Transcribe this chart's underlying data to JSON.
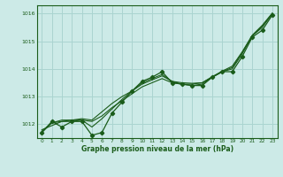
{
  "title": "",
  "xlabel": "Graphe pression niveau de la mer (hPa)",
  "bg_color": "#cceae7",
  "grid_color": "#aad4d0",
  "line_color": "#1a5c1a",
  "spine_color": "#1a5c1a",
  "ylim": [
    1011.5,
    1016.3
  ],
  "yticks": [
    1012,
    1013,
    1014,
    1015,
    1016
  ],
  "xlim": [
    -0.5,
    23.5
  ],
  "series_main": [
    1011.7,
    1012.1,
    1011.9,
    1012.1,
    1012.1,
    1011.6,
    1011.7,
    1012.4,
    1012.8,
    1013.2,
    1013.55,
    1013.7,
    1013.9,
    1013.5,
    1013.45,
    1013.4,
    1013.4,
    1013.7,
    1013.9,
    1013.9,
    1014.45,
    1015.15,
    1015.4,
    1015.95
  ],
  "series_smooth": [
    1011.7,
    1012.05,
    1012.1,
    1012.15,
    1012.15,
    1011.9,
    1012.2,
    1012.55,
    1012.9,
    1013.2,
    1013.5,
    1013.65,
    1013.8,
    1013.55,
    1013.45,
    1013.4,
    1013.45,
    1013.7,
    1013.9,
    1014.0,
    1014.55,
    1015.2,
    1015.5,
    1016.0
  ],
  "series_trend1": [
    1011.8,
    1011.95,
    1012.1,
    1012.1,
    1012.15,
    1012.1,
    1012.3,
    1012.6,
    1012.85,
    1013.1,
    1013.35,
    1013.5,
    1013.65,
    1013.5,
    1013.45,
    1013.45,
    1013.5,
    1013.7,
    1013.9,
    1014.05,
    1014.6,
    1015.2,
    1015.55,
    1016.0
  ],
  "series_trend2": [
    1011.75,
    1012.05,
    1012.15,
    1012.15,
    1012.2,
    1012.15,
    1012.45,
    1012.75,
    1013.0,
    1013.2,
    1013.45,
    1013.6,
    1013.75,
    1013.55,
    1013.5,
    1013.48,
    1013.5,
    1013.72,
    1013.92,
    1014.1,
    1014.62,
    1015.22,
    1015.58,
    1016.02
  ]
}
